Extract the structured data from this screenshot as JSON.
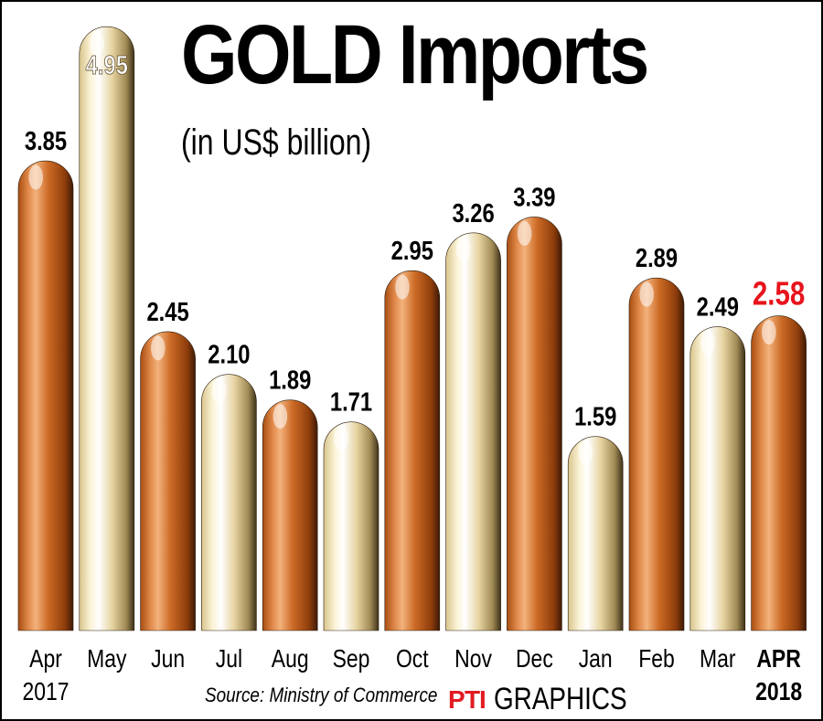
{
  "header": {
    "title": "GOLD Imports",
    "subtitle": "(in US$ billion)"
  },
  "footer": {
    "source": "Source: Ministry of Commerce",
    "logo_text": "PTI",
    "brand": "GRAPHICS"
  },
  "colors": {
    "copper": "#c8641e",
    "cream": "#e9d9a9",
    "highlight_label": "#e8141c",
    "text": "#000000"
  },
  "chart_data": {
    "type": "bar",
    "title": "GOLD Imports",
    "subtitle": "(in US$ billion)",
    "xlabel": "",
    "ylabel": "",
    "categories": [
      [
        "Apr",
        "2017"
      ],
      [
        "May"
      ],
      [
        "Jun"
      ],
      [
        "Jul"
      ],
      [
        "Aug"
      ],
      [
        "Sep"
      ],
      [
        "Oct"
      ],
      [
        "Nov"
      ],
      [
        "Dec"
      ],
      [
        "Jan"
      ],
      [
        "Feb"
      ],
      [
        "Mar"
      ],
      [
        "APR",
        "2018"
      ]
    ],
    "values": [
      3.85,
      4.95,
      2.45,
      2.1,
      1.89,
      1.71,
      2.95,
      3.26,
      3.39,
      1.59,
      2.89,
      2.49,
      2.58
    ],
    "value_labels": [
      "3.85",
      "4.95",
      "2.45",
      "2.10",
      "1.89",
      "1.71",
      "2.95",
      "3.26",
      "3.39",
      "1.59",
      "2.89",
      "2.49",
      "2.58"
    ],
    "bar_styles": [
      "copper",
      "cream",
      "copper",
      "cream",
      "copper",
      "cream",
      "copper",
      "cream",
      "copper",
      "cream",
      "copper",
      "cream",
      "copper"
    ],
    "highlight_index": 12,
    "ylim": [
      0,
      5.2
    ],
    "grid": false,
    "legend": "none"
  }
}
